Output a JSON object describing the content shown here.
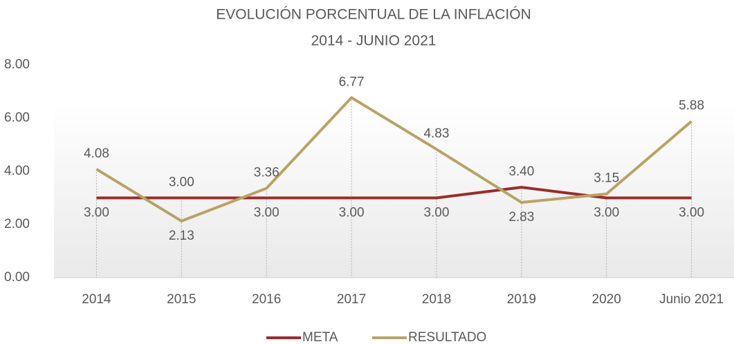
{
  "chart_data": {
    "type": "line",
    "title": "EVOLUCIÓN PORCENTUAL DE LA INFLACIÓN",
    "subtitle": "2014 - JUNIO 2021",
    "categories": [
      "2014",
      "2015",
      "2016",
      "2017",
      "2018",
      "2019",
      "2020",
      "Junio 2021"
    ],
    "series": [
      {
        "name": "META",
        "color": "#9e2a2b",
        "values": [
          3,
          3,
          3,
          3,
          3,
          3.4,
          3,
          3
        ],
        "value_labels": [
          "3.00",
          "3.00",
          "3.00",
          "3.00",
          "3.00",
          "3.40",
          "3.00",
          "3.00"
        ]
      },
      {
        "name": "RESULTADO",
        "color": "#b8a365",
        "values": [
          4.08,
          2.13,
          3.36,
          6.77,
          4.83,
          2.83,
          3.15,
          5.88
        ],
        "value_labels": [
          "4.08",
          "2.13",
          "3.36",
          "6.77",
          "4.83",
          "2.83",
          "3.15",
          "5.88"
        ]
      }
    ],
    "ylim": [
      0,
      8
    ],
    "yticks": [
      {
        "value": 0,
        "label": "0.00"
      },
      {
        "value": 2,
        "label": "2.00"
      },
      {
        "value": 4,
        "label": "4.00"
      },
      {
        "value": 6,
        "label": "6.00"
      },
      {
        "value": 8,
        "label": "8.00"
      }
    ],
    "legend": "bottom"
  }
}
